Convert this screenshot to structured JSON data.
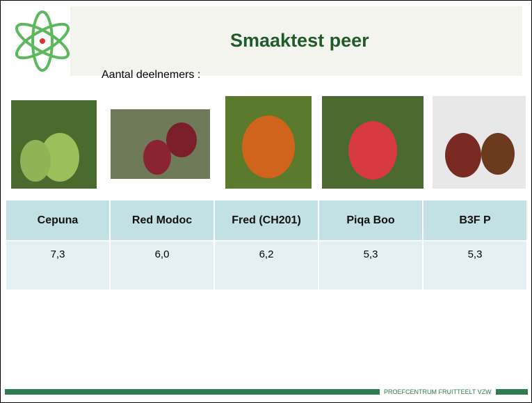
{
  "header": {
    "title": "Smaaktest peer",
    "subtitle": "Aantal deelnemers :"
  },
  "table": {
    "columns": [
      "Cepuna",
      "Red Modoc",
      "Fred (CH201)",
      "Piqa Boo",
      "B3F P"
    ],
    "rows": [
      [
        "7,3",
        "6,0",
        "6,2",
        "5,3",
        "5,3"
      ]
    ]
  },
  "footer": {
    "text": "PROEFCENTRUM FRUITTEELT VZW"
  }
}
